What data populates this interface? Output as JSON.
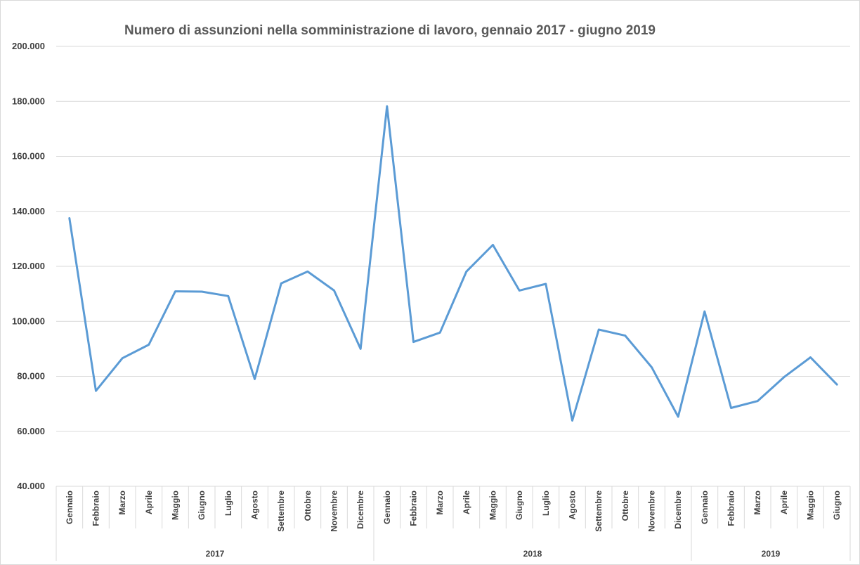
{
  "chart_data": {
    "type": "line",
    "title": "Numero di assunzioni nella somministrazione di lavoro, gennaio 2017 - giugno 2019",
    "xlabel": "",
    "ylabel": "",
    "ylim": [
      40000,
      200000
    ],
    "y_ticks": [
      "40.000",
      "60.000",
      "80.000",
      "100.000",
      "120.000",
      "140.000",
      "160.000",
      "180.000",
      "200.000"
    ],
    "grid": true,
    "legend": "none",
    "line_color": "#5B9BD5",
    "groups": [
      {
        "label": "2017",
        "months": [
          "Gennaio",
          "Febbraio",
          "Marzo",
          "Aprile",
          "Maggio",
          "Giugno",
          "Luglio",
          "Agosto",
          "Settembre",
          "Ottobre",
          "Novembre",
          "Dicembre"
        ]
      },
      {
        "label": "2018",
        "months": [
          "Gennaio",
          "Febbraio",
          "Marzo",
          "Aprile",
          "Maggio",
          "Giugno",
          "Luglio",
          "Agosto",
          "Settembre",
          "Ottobre",
          "Novembre",
          "Dicembre"
        ]
      },
      {
        "label": "2019",
        "months": [
          "Gennaio",
          "Febbraio",
          "Marzo",
          "Aprile",
          "Maggio",
          "Giugno"
        ]
      }
    ],
    "series": [
      {
        "values": [
          137500,
          74700,
          86600,
          91500,
          110900,
          110800,
          109200,
          79000,
          113800,
          118100,
          111200,
          90000,
          178200,
          92500,
          95900,
          118100,
          127800,
          111200,
          113600,
          63900,
          97000,
          94800,
          83300,
          65300,
          103600,
          68500,
          71000,
          79700,
          86900,
          77000
        ]
      }
    ]
  }
}
